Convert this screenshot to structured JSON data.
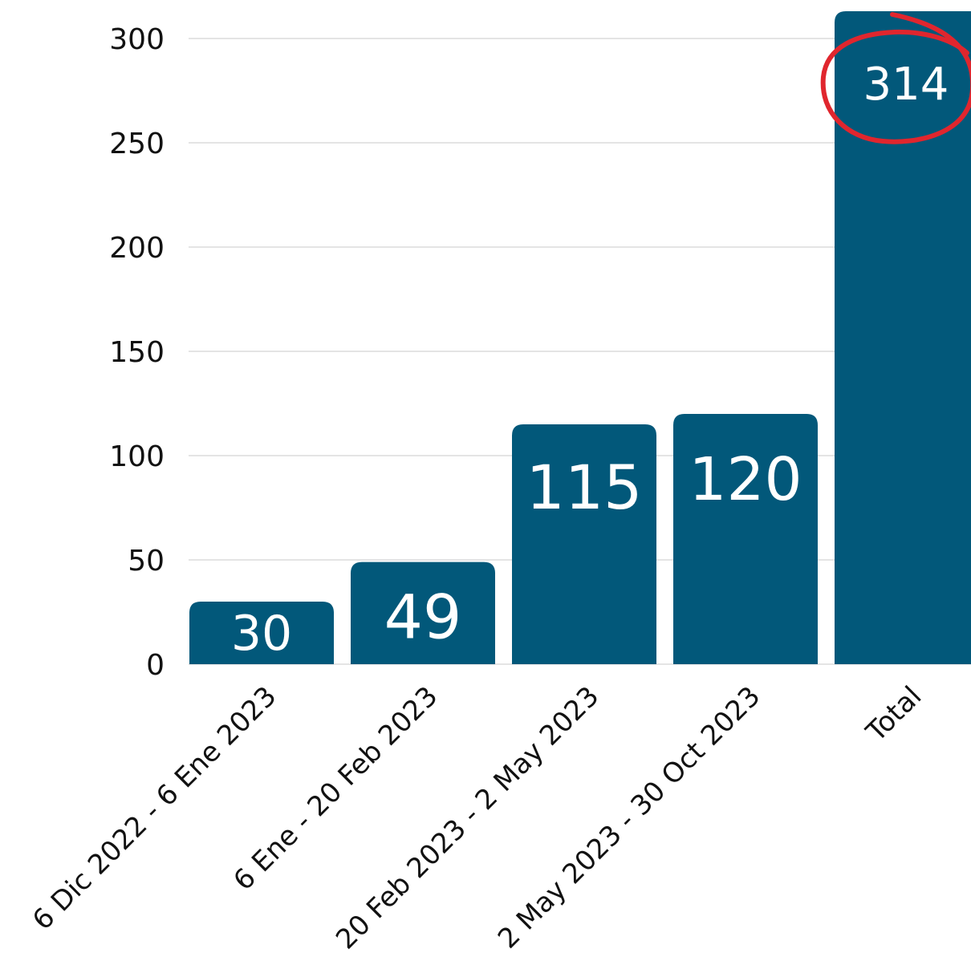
{
  "chart_data": {
    "type": "bar",
    "categories": [
      "6 Dic 2022 - 6 Ene 2023",
      "6 Ene - 20 Feb 2023",
      "20 Feb 2023 - 2 May 2023",
      "2 May 2023 - 30 Oct 2023",
      "Total"
    ],
    "values": [
      30,
      49,
      115,
      120,
      314
    ],
    "data_labels": [
      "30",
      "49",
      "115",
      "120",
      "314"
    ],
    "title": "",
    "xlabel": "",
    "ylabel": "",
    "ylim": [
      0,
      300
    ],
    "yticks": [
      0,
      50,
      100,
      150,
      200,
      250,
      300
    ],
    "ytick_labels": [
      "0",
      "50",
      "100",
      "150",
      "200",
      "250",
      "300"
    ],
    "grid": true,
    "legend": "none",
    "highlight": {
      "category": "Total",
      "style": "hand-drawn circle around data label"
    },
    "colors": {
      "bar": "#02587a",
      "label": "#ffffff",
      "highlight": "#e0262e",
      "grid": "#c9c9c9",
      "text": "#111111"
    }
  }
}
